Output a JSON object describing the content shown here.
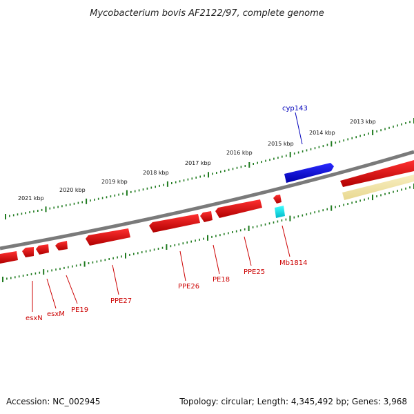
{
  "title": "Mycobacterium bovis AF2122/97, complete genome",
  "footer": {
    "accession": "Accession: NC_002945",
    "summary": "Topology: circular; Length: 4,345,492 bp; Genes: 3,968"
  },
  "colors": {
    "backbone": "#7a7a7a",
    "ticks": "#1e7a1e",
    "forward_cds": "#dd0000",
    "reverse_cds": "#ee0000",
    "cyp143": "#0000ee",
    "cyan_feature": "#00dddd",
    "pale_feature": "#f2e6a0",
    "label_red": "#cc0000",
    "label_blue": "#0000bb"
  },
  "scale": {
    "unit": "kbp",
    "labels": [
      "2021 kbp",
      "2020 kbp",
      "2019 kbp",
      "2018 kbp",
      "2017 kbp",
      "2016 kbp",
      "2015 kbp",
      "2014 kbp",
      "2013 kbp"
    ]
  },
  "genes": [
    {
      "name": "cyp143",
      "strand": "forward",
      "color_key": "cyp143"
    },
    {
      "name": "esxN",
      "strand": "reverse",
      "color_key": "label_red"
    },
    {
      "name": "esxM",
      "strand": "reverse",
      "color_key": "label_red"
    },
    {
      "name": "PE19",
      "strand": "reverse",
      "color_key": "label_red"
    },
    {
      "name": "PPE27",
      "strand": "reverse",
      "color_key": "label_red"
    },
    {
      "name": "PPE26",
      "strand": "reverse",
      "color_key": "label_red"
    },
    {
      "name": "PE18",
      "strand": "reverse",
      "color_key": "label_red"
    },
    {
      "name": "PPE25",
      "strand": "reverse",
      "color_key": "label_red"
    },
    {
      "name": "Mb1814",
      "strand": "reverse",
      "color_key": "label_red"
    }
  ]
}
